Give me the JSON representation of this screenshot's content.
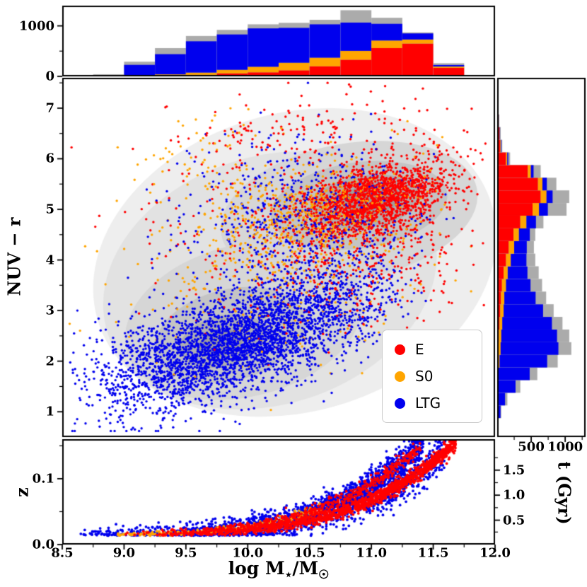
{
  "figure": {
    "xlabel_text": "log M⋆/M☉",
    "xlabel_parts": {
      "prefix": "log M",
      "sub1": "⋆",
      "mid": "/M",
      "sub2": "☉"
    },
    "x_ticks": [
      {
        "value": 8.5,
        "label": "8.5"
      },
      {
        "value": 9.0,
        "label": "9.0"
      },
      {
        "value": 9.5,
        "label": "9.5"
      },
      {
        "value": 10.0,
        "label": "10.0"
      },
      {
        "value": 10.5,
        "label": "10.5"
      },
      {
        "value": 11.0,
        "label": "11.0"
      },
      {
        "value": 11.5,
        "label": "11.5"
      },
      {
        "value": 12.0,
        "label": "12.0"
      }
    ]
  },
  "colors": {
    "E": "#ff0000",
    "S0": "#ffa500",
    "LTG": "#0000ee",
    "gray": "#ababab"
  },
  "chart_data": [
    {
      "id": "top-histogram",
      "type": "bar",
      "stacked": true,
      "orientation": "vertical",
      "x_bin_start": 8.75,
      "x_bin_width": 0.25,
      "ylim": [
        0,
        1400
      ],
      "yticks": [
        {
          "value": 0,
          "label": "0"
        },
        {
          "value": 1000,
          "label": "1000"
        }
      ],
      "background_series": {
        "name": "All",
        "color_key": "gray",
        "values": [
          40,
          290,
          560,
          800,
          920,
          1030,
          1060,
          1120,
          1310,
          1160,
          870,
          260
        ]
      },
      "series": [
        {
          "name": "E",
          "color_key": "E",
          "values": [
            2,
            8,
            15,
            30,
            60,
            80,
            120,
            200,
            330,
            560,
            650,
            170
          ]
        },
        {
          "name": "S0",
          "color_key": "S0",
          "values": [
            2,
            10,
            25,
            45,
            70,
            110,
            150,
            170,
            175,
            150,
            80,
            25
          ]
        },
        {
          "name": "LTG",
          "color_key": "LTG",
          "values": [
            15,
            210,
            400,
            620,
            700,
            760,
            690,
            660,
            560,
            330,
            120,
            30
          ]
        }
      ]
    },
    {
      "id": "main-scatter",
      "type": "scatter",
      "xlim": [
        8.5,
        12.0
      ],
      "ylim": [
        0.5,
        7.6
      ],
      "ylabel": "NUV − r",
      "yticks": [
        {
          "value": 1,
          "label": "1"
        },
        {
          "value": 2,
          "label": "2"
        },
        {
          "value": 3,
          "label": "3"
        },
        {
          "value": 4,
          "label": "4"
        },
        {
          "value": 5,
          "label": "5"
        },
        {
          "value": 6,
          "label": "6"
        },
        {
          "value": 7,
          "label": "7"
        }
      ],
      "legend": {
        "items": [
          {
            "label": "E",
            "color_key": "E"
          },
          {
            "label": "S0",
            "color_key": "S0"
          },
          {
            "label": "LTG",
            "color_key": "LTG"
          }
        ]
      },
      "density_contours": [
        {
          "cx": 10.38,
          "cy": 3.95,
          "rx": 1.66,
          "ry": 2.95,
          "rot": -16,
          "color": "#eeeeee"
        },
        {
          "cx": 10.18,
          "cy": 3.6,
          "rx": 1.38,
          "ry": 2.45,
          "rot": -18,
          "color": "#e2e2e2"
        },
        {
          "cx": 9.97,
          "cy": 2.8,
          "rx": 0.98,
          "ry": 1.5,
          "rot": -14,
          "color": "#d6d6d6"
        },
        {
          "cx": 10.82,
          "cy": 4.95,
          "rx": 1.05,
          "ry": 1.35,
          "rot": -10,
          "color": "#d6d6d6"
        },
        {
          "cx": 9.86,
          "cy": 2.52,
          "rx": 0.62,
          "ry": 0.9,
          "rot": -14,
          "color": "#c4c4c4"
        },
        {
          "cx": 10.9,
          "cy": 5.08,
          "rx": 0.72,
          "ry": 0.85,
          "rot": -8,
          "color": "#c4c4c4"
        },
        {
          "cx": 9.8,
          "cy": 2.4,
          "rx": 0.36,
          "ry": 0.5,
          "rot": -14,
          "color": "#b0b0b0"
        },
        {
          "cx": 10.95,
          "cy": 5.15,
          "rx": 0.45,
          "ry": 0.52,
          "rot": -8,
          "color": "#b0b0b0"
        },
        {
          "cx": 9.78,
          "cy": 2.35,
          "rx": 0.18,
          "ry": 0.26,
          "rot": -14,
          "color": "#9e9e9e"
        },
        {
          "cx": 11.0,
          "cy": 5.2,
          "rx": 0.24,
          "ry": 0.3,
          "rot": -8,
          "color": "#9e9e9e"
        }
      ],
      "series": [
        {
          "name": "E",
          "color_key": "E",
          "components": [
            {
              "n": 1600,
              "kind": "trend",
              "x_mean": 11.05,
              "x_sigma": 0.3,
              "x_min": 9.7,
              "x_max": 11.9,
              "intercept": 5.2,
              "slope": 0.55,
              "x_ref": 11.0,
              "y_sigma": 0.33
            },
            {
              "n": 500,
              "kind": "blob",
              "x_mean": 10.85,
              "x_sigma": 0.5,
              "y_mean": 4.2,
              "y_sigma": 0.75
            },
            {
              "n": 160,
              "kind": "blob",
              "x_mean": 10.6,
              "x_sigma": 0.6,
              "y_mean": 6.45,
              "y_sigma": 0.45
            },
            {
              "n": 90,
              "kind": "blob",
              "x_mean": 9.7,
              "x_sigma": 0.35,
              "y_mean": 4.8,
              "y_sigma": 1.0
            }
          ]
        },
        {
          "name": "S0",
          "color_key": "S0",
          "components": [
            {
              "n": 600,
              "kind": "trend",
              "x_mean": 10.55,
              "x_sigma": 0.45,
              "x_min": 9.2,
              "x_max": 11.6,
              "intercept": 4.9,
              "slope": 0.5,
              "x_ref": 10.5,
              "y_sigma": 0.5
            },
            {
              "n": 230,
              "kind": "blob",
              "x_mean": 10.2,
              "x_sigma": 0.55,
              "y_mean": 3.5,
              "y_sigma": 0.85
            },
            {
              "n": 70,
              "kind": "blob",
              "x_mean": 9.65,
              "x_sigma": 0.3,
              "y_mean": 5.9,
              "y_sigma": 0.55
            }
          ]
        },
        {
          "name": "LTG",
          "color_key": "LTG",
          "components": [
            {
              "n": 3300,
              "kind": "trend",
              "x_mean": 9.95,
              "x_sigma": 0.55,
              "x_min": 8.55,
              "x_max": 11.45,
              "intercept": 2.35,
              "slope": 0.75,
              "x_ref": 9.9,
              "y_sigma": 0.5
            },
            {
              "n": 700,
              "kind": "blob",
              "x_mean": 10.45,
              "x_sigma": 0.5,
              "y_mean": 4.7,
              "y_sigma": 0.8
            },
            {
              "n": 200,
              "kind": "blob",
              "x_mean": 9.2,
              "x_sigma": 0.3,
              "y_mean": 2.0,
              "y_sigma": 0.45
            }
          ]
        }
      ]
    },
    {
      "id": "right-histogram",
      "type": "bar",
      "stacked": true,
      "orientation": "horizontal",
      "y_bin_start": 0.875,
      "y_bin_width": 0.25,
      "xlim": [
        0,
        1300
      ],
      "xticks": [
        {
          "value": 500,
          "label": "500"
        },
        {
          "value": 1000,
          "label": "1000"
        }
      ],
      "background_series": {
        "name": "All",
        "color_key": "gray",
        "values": [
          60,
          150,
          340,
          590,
          890,
          1090,
          1060,
          960,
          830,
          720,
          660,
          610,
          560,
          540,
          560,
          680,
          1020,
          1060,
          870,
          640,
          190,
          75,
          52,
          30,
          20,
          10
        ]
      },
      "series": [
        {
          "name": "E",
          "color_key": "E",
          "values": [
            2,
            3,
            5,
            8,
            15,
            20,
            25,
            35,
            45,
            55,
            70,
            95,
            130,
            170,
            240,
            340,
            520,
            640,
            600,
            450,
            130,
            45,
            32,
            22,
            15,
            8
          ]
        },
        {
          "name": "S0",
          "color_key": "S0",
          "values": [
            2,
            3,
            5,
            10,
            20,
            30,
            35,
            40,
            50,
            50,
            60,
            60,
            70,
            80,
            80,
            90,
            95,
            85,
            65,
            45,
            18,
            8,
            5,
            2,
            1,
            0
          ]
        },
        {
          "name": "LTG",
          "color_key": "LTG",
          "values": [
            45,
            110,
            260,
            460,
            700,
            850,
            820,
            730,
            580,
            460,
            360,
            290,
            230,
            185,
            160,
            140,
            130,
            90,
            65,
            40,
            15,
            8,
            5,
            2,
            1,
            0
          ]
        }
      ]
    },
    {
      "id": "bottom-scatter",
      "type": "scatter",
      "xlim": [
        8.5,
        12.0
      ],
      "ylim": [
        0,
        0.16
      ],
      "ylabel": "z",
      "yticks": [
        {
          "value": 0.0,
          "label": "0.0"
        },
        {
          "value": 0.1,
          "label": "0.1"
        }
      ],
      "right_axis": {
        "label": "t (Gyr)",
        "ticks": [
          {
            "z": 0.037,
            "label": "0.5"
          },
          {
            "z": 0.075,
            "label": "1.0"
          },
          {
            "z": 0.113,
            "label": "1.5"
          }
        ]
      },
      "curves": {
        "A": {
          "x_ref": 8.53,
          "span": 3.12,
          "z_base": 0.015,
          "z_amp": 0.135,
          "power": 4
        },
        "B": {
          "x_ref": 8.28,
          "span": 3.12,
          "z_base": 0.015,
          "z_amp": 0.135,
          "power": 4
        }
      },
      "series": [
        {
          "name": "E",
          "color_key": "E",
          "components": [
            {
              "n": 1400,
              "curve": "A",
              "x_min": 9.25,
              "x_max": 11.68,
              "bias": 0.5,
              "sig0": 0.0022,
              "sig1": 0.004
            },
            {
              "n": 500,
              "curve": "B",
              "x_min": 9.0,
              "x_max": 11.4,
              "bias": 0.55,
              "sig0": 0.0022,
              "sig1": 0.004
            }
          ]
        },
        {
          "name": "S0",
          "color_key": "S0",
          "components": [
            {
              "n": 230,
              "curve": "B",
              "x_min": 8.95,
              "x_max": 10.6,
              "bias": 1.0,
              "sig0": 0.0015,
              "sig1": 0.002
            }
          ]
        },
        {
          "name": "LTG",
          "color_key": "LTG",
          "components": [
            {
              "n": 1600,
              "curve": "B",
              "x_min": 8.6,
              "x_max": 11.42,
              "bias": 0.6,
              "sig0": 0.004,
              "sig1": 0.008
            },
            {
              "n": 750,
              "curve": "A",
              "x_min": 9.3,
              "x_max": 11.6,
              "bias": 0.5,
              "sig0": 0.006,
              "sig1": 0.01
            }
          ]
        }
      ]
    }
  ]
}
